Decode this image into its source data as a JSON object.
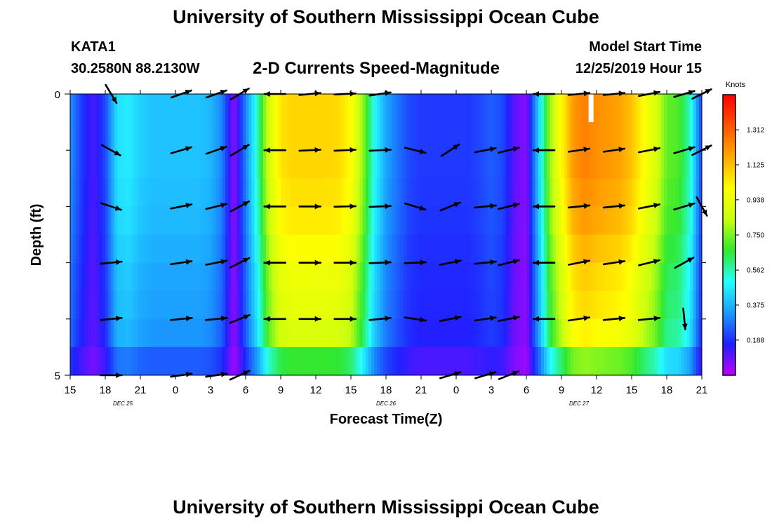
{
  "header": {
    "title": "University of Southern Mississippi Ocean Cube",
    "station_id": "KATA1",
    "coordinates": "30.2580N 88.2130W",
    "chart_title": "2-D Currents Speed-Magnitude",
    "model_start_label": "Model Start Time",
    "model_start_value": "12/25/2019 Hour 15"
  },
  "footer": {
    "title": "University of Southern Mississippi Ocean Cube"
  },
  "chart_data": {
    "type": "heatmap",
    "title": "2-D Currents Speed-Magnitude",
    "xlabel": "Forecast Time(Z)",
    "ylabel": "Depth (ft)",
    "x_range_hours": [
      0,
      54
    ],
    "y_range_ft": [
      0,
      5
    ],
    "x_tick_labels": [
      "15",
      "18",
      "21",
      "0",
      "3",
      "6",
      "9",
      "12",
      "15",
      "18",
      "21",
      "0",
      "3",
      "6",
      "9",
      "12",
      "15",
      "18",
      "21"
    ],
    "date_labels": [
      {
        "text": "DEC 25",
        "hour": 4.5
      },
      {
        "text": "DEC 26",
        "hour": 27
      },
      {
        "text": "DEC 27",
        "hour": 43.5
      }
    ],
    "y_tick_labels": [
      {
        "value": 0,
        "text": "0"
      },
      {
        "value": 5,
        "text": "5"
      }
    ],
    "y_minor_ticks": [
      1,
      2,
      3,
      4
    ],
    "colorbar": {
      "unit": "Knots",
      "min": 0,
      "max": 1.5,
      "tick_labels": [
        "1.312",
        "1.125",
        "0.938",
        "0.750",
        "0.562",
        "0.375",
        "0.188"
      ],
      "stops": [
        "#c000ff",
        "#2020ff",
        "#1a9bff",
        "#26ffff",
        "#30e830",
        "#c8ff10",
        "#ffff00",
        "#ffaa00",
        "#ff5500",
        "#ff0000"
      ]
    },
    "speed_profile_hours": [
      0,
      1,
      2,
      3,
      4,
      5,
      6,
      7,
      8,
      9,
      10,
      11,
      12,
      13,
      14,
      15,
      16,
      17,
      18,
      19,
      20,
      21,
      22,
      23,
      24,
      25,
      26,
      27,
      28,
      29,
      30,
      31,
      32,
      33,
      34,
      35,
      36,
      37,
      38,
      39,
      40,
      41,
      42,
      43,
      44,
      45,
      46,
      47,
      48,
      49,
      50,
      51,
      52,
      53,
      54
    ],
    "speed_profile": [
      0.32,
      0.2,
      0.12,
      0.22,
      0.45,
      0.47,
      0.42,
      0.4,
      0.4,
      0.4,
      0.4,
      0.4,
      0.38,
      0.3,
      0.05,
      0.3,
      0.55,
      0.88,
      1.05,
      1.08,
      1.08,
      1.08,
      1.08,
      1.07,
      1.0,
      0.78,
      0.5,
      0.35,
      0.28,
      0.22,
      0.2,
      0.2,
      0.2,
      0.2,
      0.2,
      0.22,
      0.25,
      0.22,
      0.1,
      0.06,
      0.4,
      0.78,
      1.0,
      1.2,
      1.25,
      1.22,
      1.2,
      1.18,
      1.12,
      1.0,
      0.9,
      0.72,
      0.7,
      0.55,
      0.2
    ],
    "depth_rows_ft": [
      0.25,
      0.75,
      1.25,
      1.75,
      2.25,
      2.75,
      3.25,
      3.75,
      4.25,
      4.75
    ],
    "depth_row_factor": [
      1.0,
      1.0,
      1.0,
      0.98,
      0.96,
      0.92,
      0.88,
      0.86,
      0.82,
      0.62
    ],
    "missing_cells": [
      {
        "hour": 44.5,
        "depth_ft": 0.25
      }
    ],
    "vector_hours": [
      3.5,
      6.5,
      9.5,
      12.5,
      14.5,
      17.5,
      20.5,
      23.5,
      26.5,
      29.5,
      32.5,
      35.5,
      37.5,
      40.5,
      43.5,
      46.5,
      49.5,
      52.5,
      54
    ],
    "vector_depths_ft": [
      0,
      1,
      2,
      3,
      4,
      5
    ],
    "vectors": [
      [
        {
          "u": 0.6,
          "v": -1
        },
        {
          "u": 0.9,
          "v": -0.5
        },
        {
          "u": 0.9,
          "v": -0.3
        },
        {
          "u": 0.97,
          "v": 0.1
        },
        {
          "u": 0.97,
          "v": 0.1
        },
        {
          "u": 0.99,
          "v": 0
        }
      ],
      null,
      [
        {
          "u": 1,
          "v": 0.35
        },
        {
          "u": 1,
          "v": 0.3
        },
        {
          "u": 1,
          "v": 0.2
        },
        {
          "u": 1,
          "v": 0.15
        },
        {
          "u": 1,
          "v": 0.1
        },
        {
          "u": 1,
          "v": 0.15
        }
      ],
      [
        {
          "u": 1,
          "v": 0.35
        },
        {
          "u": 1,
          "v": 0.35
        },
        {
          "u": 1,
          "v": 0.25
        },
        {
          "u": 1,
          "v": 0.2
        },
        {
          "u": 1,
          "v": 0.1
        },
        {
          "u": 1,
          "v": 0.15
        }
      ],
      [
        {
          "u": 1,
          "v": 0.6
        },
        {
          "u": 1,
          "v": 0.6
        },
        {
          "u": 1,
          "v": 0.55
        },
        {
          "u": 1,
          "v": 0.5
        },
        {
          "u": 1,
          "v": 0.4
        },
        {
          "u": 1,
          "v": 0.45
        }
      ],
      [
        {
          "u": -1,
          "v": 0
        },
        {
          "u": -1,
          "v": 0
        },
        {
          "u": -1,
          "v": 0
        },
        {
          "u": -1,
          "v": 0
        },
        {
          "u": -1,
          "v": 0
        },
        null
      ],
      [
        {
          "u": 1,
          "v": 0.1
        },
        {
          "u": 1,
          "v": 0.05
        },
        {
          "u": 1,
          "v": 0
        },
        {
          "u": 1,
          "v": 0
        },
        {
          "u": 1,
          "v": 0
        },
        null
      ],
      [
        {
          "u": 1,
          "v": 0.05
        },
        {
          "u": 1,
          "v": 0.05
        },
        {
          "u": 1,
          "v": 0.03
        },
        {
          "u": 1,
          "v": 0
        },
        {
          "u": 1,
          "v": 0
        },
        null
      ],
      [
        {
          "u": 1,
          "v": 0.15
        },
        {
          "u": 1,
          "v": 0.05
        },
        {
          "u": 1,
          "v": 0.05
        },
        {
          "u": 1,
          "v": 0.05
        },
        {
          "u": 1,
          "v": 0.1
        },
        null
      ],
      [
        null,
        {
          "u": 1,
          "v": -0.25
        },
        {
          "u": 1,
          "v": -0.3
        },
        {
          "u": 1,
          "v": 0.05
        },
        {
          "u": 1,
          "v": -0.15
        },
        null
      ],
      [
        null,
        {
          "u": 1,
          "v": 0.65
        },
        {
          "u": 1,
          "v": 0.4
        },
        {
          "u": 1,
          "v": 0.2
        },
        {
          "u": 1,
          "v": 0.2
        },
        {
          "u": 1,
          "v": 0.3
        }
      ],
      [
        null,
        {
          "u": 1,
          "v": 0.2
        },
        {
          "u": 1,
          "v": 0.1
        },
        {
          "u": 1,
          "v": 0.1
        },
        {
          "u": 1,
          "v": 0.15
        },
        {
          "u": 1,
          "v": 0.3
        }
      ],
      [
        null,
        {
          "u": 1,
          "v": 0.25
        },
        {
          "u": 1,
          "v": 0.25
        },
        {
          "u": 1,
          "v": 0.25
        },
        {
          "u": 1,
          "v": 0.2
        },
        {
          "u": 1,
          "v": 0.4
        }
      ],
      [
        {
          "u": -1,
          "v": 0
        },
        {
          "u": -1,
          "v": 0
        },
        {
          "u": -1,
          "v": 0
        },
        {
          "u": -1,
          "v": 0
        },
        {
          "u": -1,
          "v": 0
        },
        null
      ],
      [
        {
          "u": 1,
          "v": 0.1
        },
        {
          "u": 1,
          "v": 0.15
        },
        {
          "u": 1,
          "v": 0.1
        },
        {
          "u": 1,
          "v": 0.2
        },
        {
          "u": 1,
          "v": 0.15
        },
        null
      ],
      [
        {
          "u": 1,
          "v": 0.1
        },
        {
          "u": 1,
          "v": 0.15
        },
        {
          "u": 1,
          "v": 0.1
        },
        {
          "u": 1,
          "v": 0.15
        },
        {
          "u": 1,
          "v": 0.1
        },
        null
      ],
      [
        {
          "u": 1,
          "v": 0.2
        },
        {
          "u": 1,
          "v": 0.2
        },
        {
          "u": 1,
          "v": 0.2
        },
        {
          "u": 1,
          "v": 0.25
        },
        {
          "u": 1,
          "v": 0.1
        },
        null
      ],
      [
        {
          "u": 1,
          "v": 0.3
        },
        {
          "u": 1,
          "v": 0.3
        },
        {
          "u": 1,
          "v": 0.3
        },
        {
          "u": 1,
          "v": 0.55
        },
        {
          "u": 0.1,
          "v": -1
        },
        null
      ],
      [
        {
          "u": 0.9,
          "v": 0.45
        },
        {
          "u": 0.9,
          "v": 0.45
        },
        {
          "u": 0.5,
          "v": -0.9
        },
        null,
        null,
        null
      ]
    ]
  }
}
